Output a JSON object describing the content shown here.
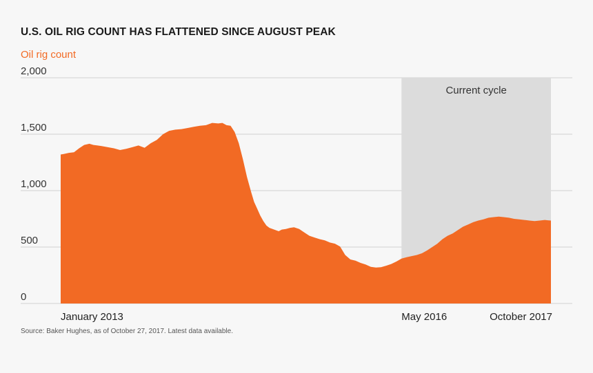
{
  "chart_data": {
    "type": "area",
    "title": "U.S. OIL RIG COUNT HAS FLATTENED SINCE AUGUST PEAK",
    "ylabel": "Oil rig count",
    "xlabel": "",
    "ylim": [
      0,
      2000
    ],
    "yticks": [
      "2,000",
      "1,500",
      "1,000",
      "500",
      "0"
    ],
    "ytick_values": [
      2000,
      1500,
      1000,
      500,
      0
    ],
    "xtick_labels": [
      "January 2013",
      "May 2016",
      "October 2017"
    ],
    "xtick_values": [
      2013.0,
      2016.33,
      2017.79
    ],
    "xlim": [
      2013.0,
      2017.79
    ],
    "grid": true,
    "color": "#f26a24",
    "highlight": {
      "label": "Current cycle",
      "x_start": 2016.33,
      "x_end": 2017.79,
      "color": "#dcdcdc"
    },
    "series": [
      {
        "name": "Oil rig count",
        "x": [
          2013.0,
          2013.03,
          2013.08,
          2013.13,
          2013.18,
          2013.23,
          2013.28,
          2013.32,
          2013.36,
          2013.4,
          2013.46,
          2013.52,
          2013.58,
          2013.64,
          2013.7,
          2013.76,
          2013.82,
          2013.88,
          2013.94,
          2014.0,
          2014.06,
          2014.12,
          2014.18,
          2014.24,
          2014.3,
          2014.36,
          2014.42,
          2014.48,
          2014.54,
          2014.58,
          2014.62,
          2014.66,
          2014.7,
          2014.74,
          2014.78,
          2014.82,
          2014.86,
          2014.89,
          2014.92,
          2014.95,
          2014.98,
          2015.01,
          2015.04,
          2015.07,
          2015.1,
          2015.13,
          2015.16,
          2015.2,
          2015.24,
          2015.28,
          2015.33,
          2015.38,
          2015.43,
          2015.48,
          2015.53,
          2015.58,
          2015.63,
          2015.68,
          2015.73,
          2015.78,
          2015.83,
          2015.88,
          2015.93,
          2015.98,
          2016.03,
          2016.08,
          2016.13,
          2016.18,
          2016.23,
          2016.28,
          2016.33,
          2016.38,
          2016.43,
          2016.48,
          2016.53,
          2016.58,
          2016.63,
          2016.68,
          2016.73,
          2016.78,
          2016.83,
          2016.88,
          2016.93,
          2016.98,
          2017.03,
          2017.08,
          2017.13,
          2017.18,
          2017.23,
          2017.28,
          2017.33,
          2017.38,
          2017.43,
          2017.48,
          2017.53,
          2017.58,
          2017.63,
          2017.68,
          2017.73,
          2017.76,
          2017.79
        ],
        "values": [
          1320,
          1325,
          1335,
          1340,
          1375,
          1405,
          1415,
          1405,
          1400,
          1395,
          1385,
          1375,
          1360,
          1370,
          1385,
          1400,
          1380,
          1420,
          1450,
          1500,
          1530,
          1540,
          1545,
          1555,
          1565,
          1575,
          1580,
          1600,
          1595,
          1600,
          1580,
          1575,
          1520,
          1420,
          1280,
          1120,
          990,
          900,
          840,
          780,
          730,
          690,
          670,
          660,
          650,
          640,
          655,
          660,
          670,
          675,
          660,
          630,
          600,
          585,
          570,
          560,
          540,
          530,
          505,
          430,
          390,
          380,
          360,
          345,
          325,
          318,
          322,
          335,
          350,
          372,
          398,
          410,
          420,
          430,
          445,
          470,
          500,
          530,
          570,
          600,
          620,
          650,
          680,
          700,
          720,
          735,
          745,
          760,
          765,
          770,
          765,
          760,
          750,
          745,
          740,
          735,
          730,
          735,
          740,
          737,
          735
        ]
      }
    ]
  },
  "source_text": "Source: Baker Hughes, as of October 27, 2017. Latest data available."
}
